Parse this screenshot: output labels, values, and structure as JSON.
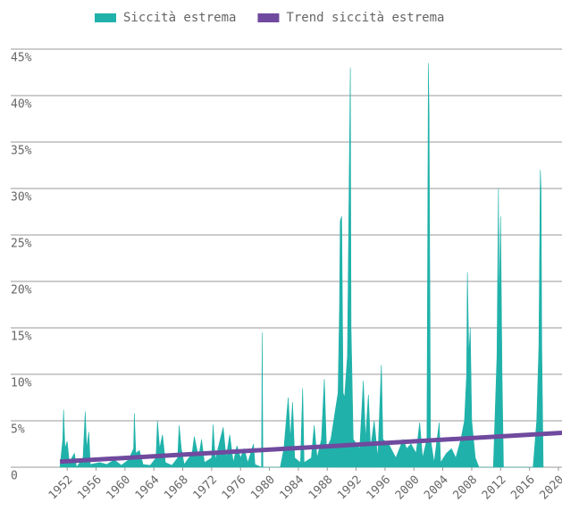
{
  "chart_data": {
    "type": "area",
    "series": [
      {
        "name": "Siccità estrema",
        "type": "area",
        "color": "#20b2aa",
        "x": [
          1951.0,
          1951.4,
          1951.5,
          1951.7,
          1952.0,
          1952.3,
          1953.0,
          1953.3,
          1954.2,
          1954.5,
          1954.7,
          1955.0,
          1955.2,
          1956.5,
          1957.5,
          1958.5,
          1959.5,
          1960.5,
          1961.2,
          1961.3,
          1961.5,
          1962.0,
          1962.5,
          1963.5,
          1964.3,
          1964.5,
          1964.8,
          1965.2,
          1965.6,
          1966.5,
          1967.3,
          1967.5,
          1967.8,
          1968.2,
          1969.3,
          1969.6,
          1970.2,
          1970.6,
          1971.0,
          1972.0,
          1972.2,
          1972.5,
          1973.6,
          1974.0,
          1974.5,
          1975.0,
          1975.5,
          1976.0,
          1976.5,
          1977.0,
          1977.8,
          1978.0,
          1978.9,
          1979.0,
          1979.1,
          1981.5,
          1982.0,
          1982.6,
          1982.9,
          1983.2,
          1983.5,
          1984.3,
          1984.6,
          1984.8,
          1985.8,
          1986.2,
          1986.6,
          1987.2,
          1987.6,
          1987.9,
          1988.5,
          1989.5,
          1989.7,
          1989.8,
          1990.0,
          1990.2,
          1990.4,
          1990.8,
          1991.0,
          1991.2,
          1991.3,
          1991.6,
          1992.5,
          1993.0,
          1993.3,
          1993.7,
          1994.0,
          1994.5,
          1995.0,
          1995.5,
          1995.7,
          1996.5,
          1997.5,
          1998.5,
          1999.0,
          1999.6,
          2000.3,
          2000.8,
          2001.2,
          2001.8,
          2002.0,
          2002.1,
          2002.3,
          2002.8,
          2003.5,
          2003.7,
          2004.5,
          2005.2,
          2005.8,
          2006.5,
          2007.0,
          2007.3,
          2007.4,
          2007.6,
          2007.8,
          2008.0,
          2008.5,
          2009.0,
          2011.0,
          2011.5,
          2011.7,
          2011.8,
          2012.0,
          2012.2,
          2012.4,
          2016.5,
          2017.0,
          2017.3,
          2017.5,
          2017.6,
          2017.7,
          2017.9
        ],
        "values": [
          0,
          3,
          6.2,
          2,
          2.8,
          0.5,
          1.5,
          0,
          1,
          6,
          2,
          3.8,
          0.3,
          0.5,
          0.3,
          0.8,
          0.2,
          0.8,
          2,
          5.8,
          1.5,
          1.8,
          0.3,
          0.2,
          1,
          5,
          2,
          3.5,
          0.5,
          0.2,
          1,
          4.5,
          2,
          0.3,
          1.5,
          3.3,
          1,
          3,
          0.5,
          1,
          4.6,
          0.8,
          4.3,
          1,
          3.5,
          0.5,
          2.3,
          1,
          2,
          0.5,
          2.5,
          0.3,
          0,
          14.5,
          0,
          0,
          2,
          7.5,
          3,
          7,
          1,
          0.5,
          8.5,
          0.5,
          1,
          4.5,
          1,
          3,
          9.5,
          2,
          3,
          8,
          17,
          26.5,
          27,
          8,
          7.5,
          12,
          28,
          43,
          15,
          3,
          2,
          9.3,
          3,
          7.8,
          2,
          5,
          1,
          11,
          3,
          2.5,
          1,
          3,
          2,
          2.5,
          1.5,
          4.8,
          1,
          3,
          43.5,
          38,
          3,
          0.5,
          4.8,
          0.5,
          1.5,
          2,
          1,
          3,
          5,
          10,
          21,
          12,
          15,
          5,
          1,
          0,
          0,
          12,
          30,
          17,
          27,
          10,
          0,
          0,
          5,
          13,
          32,
          30,
          13,
          0
        ]
      },
      {
        "name": "Trend siccità estrema",
        "type": "line",
        "color": "#6f4a9e",
        "x": [
          1951.0,
          2020.5
        ],
        "values": [
          0.6,
          3.7
        ]
      }
    ],
    "xlim": [
      1950,
      2020.5
    ],
    "xticks": [
      1952,
      1956,
      1960,
      1964,
      1968,
      1972,
      1976,
      1980,
      1984,
      1988,
      1992,
      1996,
      2000,
      2004,
      2008,
      2012,
      2016,
      2020
    ],
    "ylim": [
      0,
      45
    ],
    "yticks": [
      0,
      {
        "value": 5,
        "label": "5%"
      },
      {
        "value": 10,
        "label": "10%"
      },
      {
        "value": 15,
        "label": "15%"
      },
      {
        "value": 20,
        "label": "20%"
      },
      {
        "value": 25,
        "label": "25%"
      },
      {
        "value": 30,
        "label": "30%"
      },
      {
        "value": 35,
        "label": "35%"
      },
      {
        "value": 40,
        "label": "40%"
      },
      {
        "value": 45,
        "label": "45%"
      }
    ],
    "grid": true,
    "legend": "top"
  }
}
